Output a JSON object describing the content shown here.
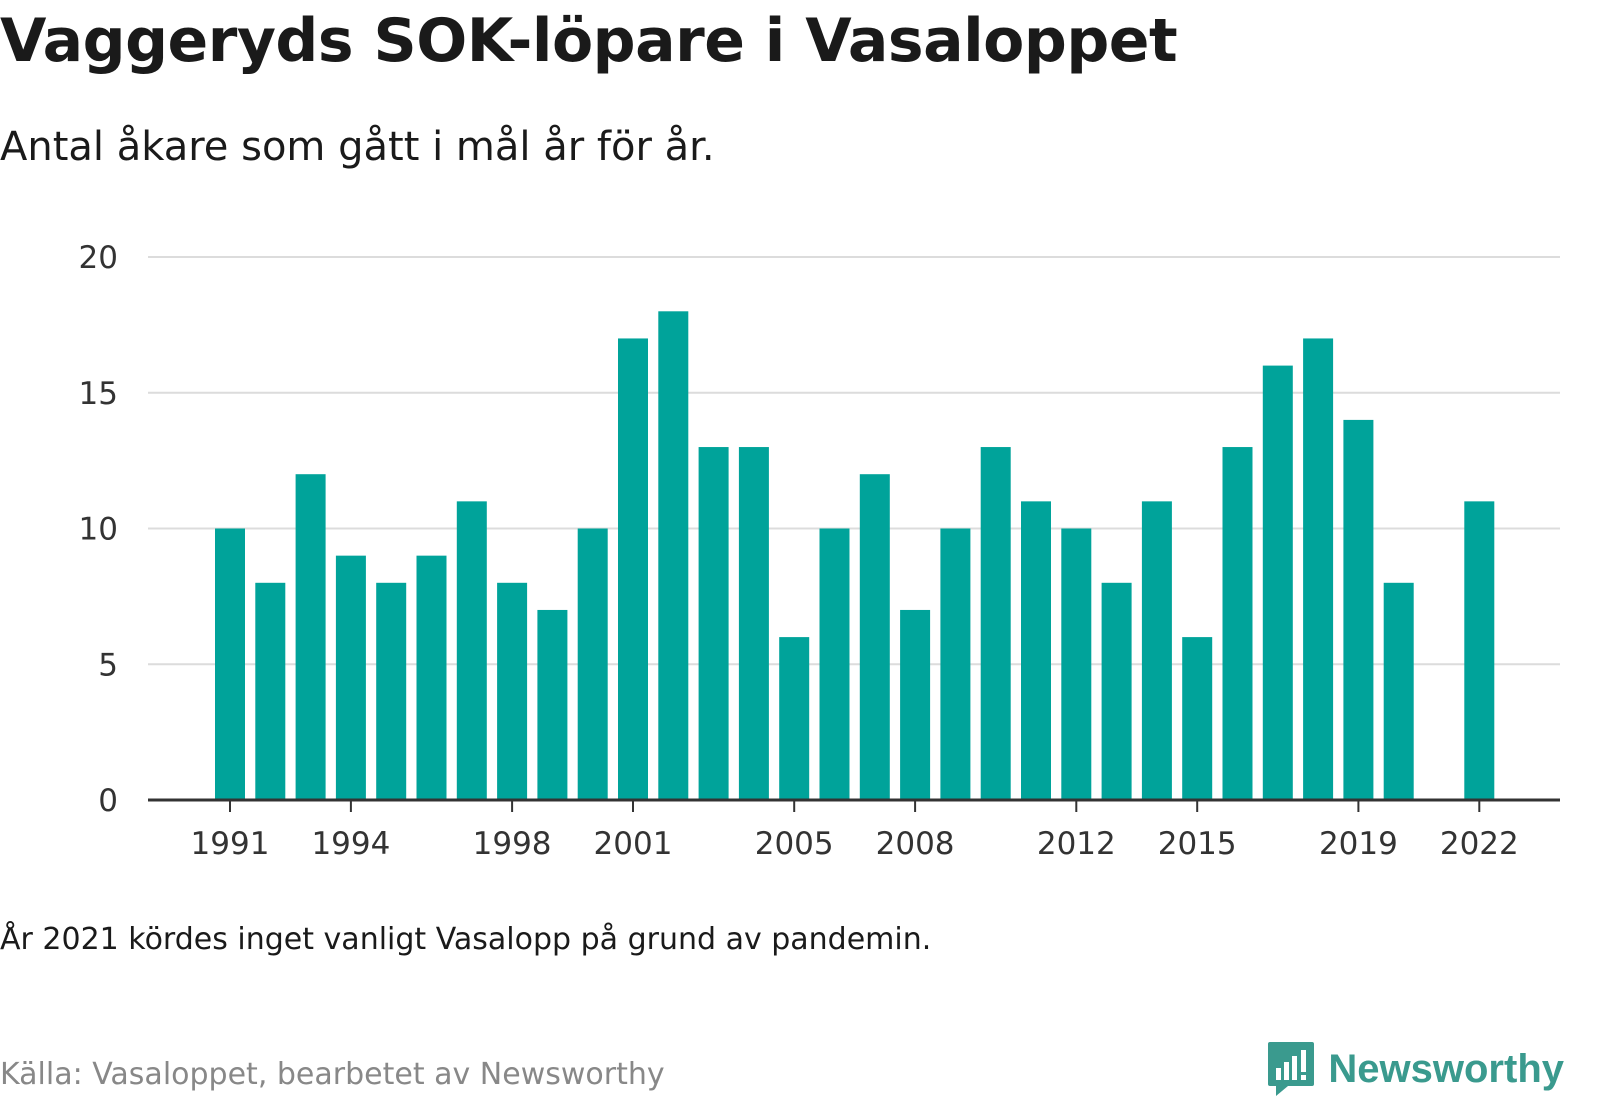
{
  "title": "Vaggeryds SOK-löpare i Vasaloppet",
  "subtitle": "Antal åkare som gått i mål år för år.",
  "note": "År 2021 kördes inget vanligt Vasalopp på grund av pandemin.",
  "source": "Källa: Vasaloppet, bearbetet av Newsworthy",
  "brand": {
    "name": "Newsworthy",
    "icon": "newsworthy-logo-icon",
    "color": "#3a9a8e"
  },
  "chart_data": {
    "type": "bar",
    "x": [
      1991,
      1992,
      1993,
      1994,
      1995,
      1996,
      1997,
      1998,
      1999,
      2000,
      2001,
      2002,
      2003,
      2004,
      2005,
      2006,
      2007,
      2008,
      2009,
      2010,
      2011,
      2012,
      2013,
      2014,
      2015,
      2016,
      2017,
      2018,
      2019,
      2020,
      2021,
      2022
    ],
    "values": [
      10,
      8,
      12,
      9,
      8,
      9,
      11,
      8,
      7,
      10,
      17,
      18,
      13,
      13,
      6,
      10,
      12,
      7,
      10,
      13,
      11,
      10,
      8,
      11,
      6,
      13,
      16,
      17,
      14,
      8,
      null,
      11
    ],
    "xticks": [
      1991,
      1994,
      1998,
      2001,
      2005,
      2008,
      2012,
      2015,
      2019,
      2022
    ],
    "yticks": [
      0,
      5,
      10,
      15,
      20
    ],
    "ylim": [
      0,
      20
    ],
    "xlabel": "",
    "ylabel": "",
    "grid": true,
    "bar_color": "#00a39a"
  }
}
